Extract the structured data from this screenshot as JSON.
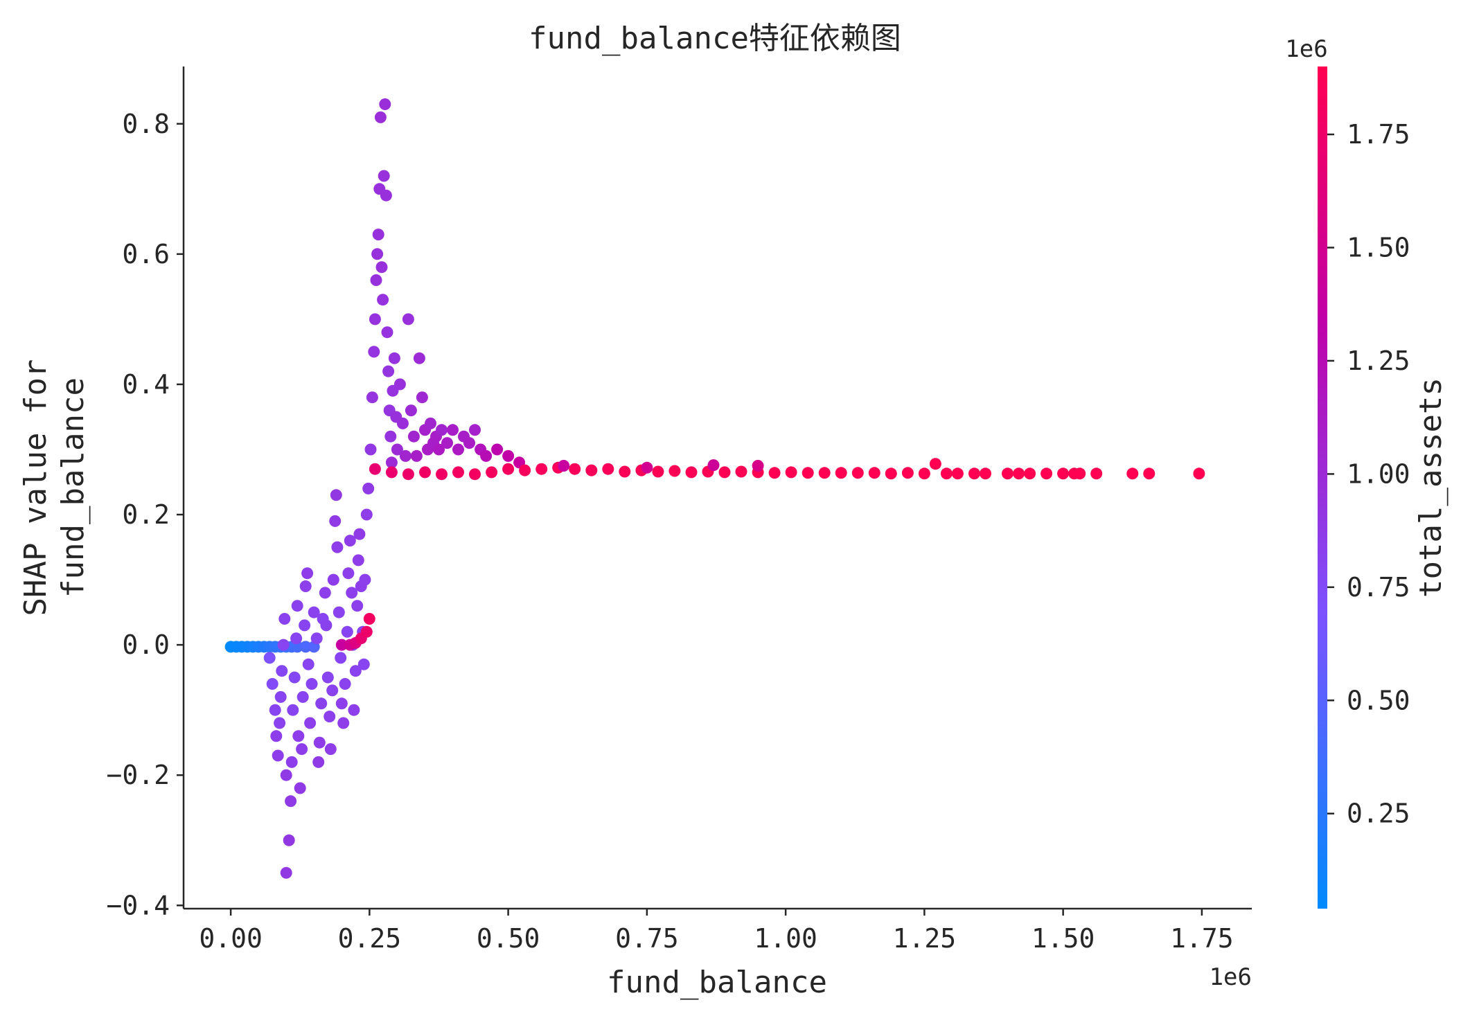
{
  "chart_data": {
    "type": "scatter",
    "title": "fund_balance特征依赖图",
    "xlabel": "fund_balance",
    "ylabel_lines": [
      "SHAP value for",
      "fund_balance"
    ],
    "x_offset_label": "1e6",
    "xlim": [
      -0.085,
      1.84
    ],
    "ylim": [
      -0.405,
      0.888
    ],
    "x_ticks": [
      0.0,
      0.25,
      0.5,
      0.75,
      1.0,
      1.25,
      1.5,
      1.75
    ],
    "x_tick_labels": [
      "0.00",
      "0.25",
      "0.50",
      "0.75",
      "1.00",
      "1.25",
      "1.50",
      "1.75"
    ],
    "y_ticks": [
      -0.4,
      -0.2,
      0.0,
      0.2,
      0.4,
      0.6,
      0.8
    ],
    "y_tick_labels": [
      "−0.4",
      "−0.2",
      "0.0",
      "0.2",
      "0.4",
      "0.6",
      "0.8"
    ],
    "grid": false,
    "colorbar": {
      "label": "total_assets",
      "offset_label": "1e6",
      "range": [
        0.04,
        1.9
      ],
      "ticks": [
        0.25,
        0.5,
        0.75,
        1.0,
        1.25,
        1.5,
        1.75
      ],
      "tick_labels": [
        "0.25",
        "0.50",
        "0.75",
        "1.00",
        "1.25",
        "1.50",
        "1.75"
      ],
      "colormap": [
        "#008afb",
        "#7c52ff",
        "#c000a8",
        "#ff0052"
      ]
    },
    "points_color_value_axis": "total_assets",
    "points": [
      [
        0.0,
        -0.003,
        0.05
      ],
      [
        0.01,
        -0.003,
        0.08
      ],
      [
        0.02,
        -0.003,
        0.1
      ],
      [
        0.03,
        -0.003,
        0.12
      ],
      [
        0.04,
        -0.003,
        0.15
      ],
      [
        0.05,
        -0.003,
        0.18
      ],
      [
        0.06,
        -0.003,
        0.21
      ],
      [
        0.07,
        -0.003,
        0.25
      ],
      [
        0.08,
        -0.003,
        0.28
      ],
      [
        0.09,
        -0.003,
        0.31
      ],
      [
        0.1,
        -0.003,
        0.34
      ],
      [
        0.11,
        -0.003,
        0.37
      ],
      [
        0.12,
        -0.003,
        0.4
      ],
      [
        0.135,
        -0.003,
        0.44
      ],
      [
        0.15,
        -0.003,
        0.47
      ],
      [
        0.07,
        -0.02,
        0.7
      ],
      [
        0.075,
        -0.06,
        0.75
      ],
      [
        0.08,
        -0.1,
        0.8
      ],
      [
        0.082,
        -0.14,
        0.85
      ],
      [
        0.085,
        -0.17,
        0.85
      ],
      [
        0.088,
        -0.12,
        0.82
      ],
      [
        0.09,
        -0.08,
        0.8
      ],
      [
        0.092,
        -0.04,
        0.78
      ],
      [
        0.095,
        0.0,
        0.8
      ],
      [
        0.097,
        0.04,
        0.82
      ],
      [
        0.1,
        -0.2,
        0.88
      ],
      [
        0.1,
        -0.35,
        0.9
      ],
      [
        0.105,
        -0.3,
        0.9
      ],
      [
        0.108,
        -0.24,
        0.88
      ],
      [
        0.11,
        -0.18,
        0.85
      ],
      [
        0.112,
        -0.1,
        0.8
      ],
      [
        0.115,
        -0.05,
        0.78
      ],
      [
        0.118,
        0.01,
        0.8
      ],
      [
        0.12,
        0.06,
        0.82
      ],
      [
        0.122,
        -0.14,
        0.85
      ],
      [
        0.125,
        -0.22,
        0.88
      ],
      [
        0.128,
        -0.16,
        0.85
      ],
      [
        0.13,
        -0.08,
        0.8
      ],
      [
        0.133,
        0.03,
        0.8
      ],
      [
        0.135,
        0.09,
        0.84
      ],
      [
        0.138,
        0.11,
        0.86
      ],
      [
        0.14,
        -0.03,
        0.8
      ],
      [
        0.143,
        -0.12,
        0.84
      ],
      [
        0.146,
        -0.06,
        0.8
      ],
      [
        0.15,
        0.05,
        0.82
      ],
      [
        0.155,
        0.01,
        0.8
      ],
      [
        0.158,
        -0.18,
        0.88
      ],
      [
        0.16,
        -0.15,
        0.86
      ],
      [
        0.163,
        -0.09,
        0.82
      ],
      [
        0.166,
        0.04,
        0.8
      ],
      [
        0.17,
        0.08,
        0.84
      ],
      [
        0.172,
        0.03,
        0.82
      ],
      [
        0.175,
        -0.05,
        0.8
      ],
      [
        0.178,
        -0.11,
        0.84
      ],
      [
        0.18,
        -0.16,
        0.86
      ],
      [
        0.183,
        -0.07,
        0.82
      ],
      [
        0.185,
        0.1,
        0.85
      ],
      [
        0.188,
        0.19,
        0.88
      ],
      [
        0.19,
        0.23,
        0.9
      ],
      [
        0.192,
        0.15,
        0.86
      ],
      [
        0.195,
        0.05,
        0.82
      ],
      [
        0.198,
        -0.02,
        0.8
      ],
      [
        0.2,
        -0.09,
        0.84
      ],
      [
        0.203,
        -0.12,
        0.86
      ],
      [
        0.206,
        -0.06,
        0.82
      ],
      [
        0.21,
        0.02,
        0.8
      ],
      [
        0.212,
        0.11,
        0.84
      ],
      [
        0.215,
        0.16,
        0.86
      ],
      [
        0.218,
        0.08,
        0.84
      ],
      [
        0.22,
        0.0,
        0.8
      ],
      [
        0.222,
        -0.1,
        0.84
      ],
      [
        0.225,
        -0.04,
        0.82
      ],
      [
        0.228,
        0.06,
        0.84
      ],
      [
        0.23,
        0.13,
        0.86
      ],
      [
        0.232,
        0.17,
        0.88
      ],
      [
        0.235,
        0.09,
        0.85
      ],
      [
        0.238,
        0.02,
        0.82
      ],
      [
        0.24,
        -0.03,
        0.8
      ],
      [
        0.242,
        0.1,
        0.84
      ],
      [
        0.245,
        0.2,
        0.86
      ],
      [
        0.248,
        0.24,
        0.88
      ],
      [
        0.2,
        0.0,
        1.4
      ],
      [
        0.215,
        0.0,
        1.5
      ],
      [
        0.225,
        0.003,
        1.6
      ],
      [
        0.235,
        0.01,
        1.7
      ],
      [
        0.245,
        0.02,
        1.75
      ],
      [
        0.25,
        0.04,
        1.8
      ],
      [
        0.252,
        0.3,
        0.9
      ],
      [
        0.255,
        0.38,
        0.92
      ],
      [
        0.258,
        0.45,
        0.92
      ],
      [
        0.26,
        0.5,
        0.94
      ],
      [
        0.262,
        0.56,
        0.95
      ],
      [
        0.264,
        0.6,
        0.95
      ],
      [
        0.266,
        0.63,
        0.95
      ],
      [
        0.268,
        0.7,
        0.96
      ],
      [
        0.27,
        0.81,
        0.98
      ],
      [
        0.272,
        0.58,
        0.95
      ],
      [
        0.274,
        0.53,
        0.94
      ],
      [
        0.276,
        0.72,
        0.96
      ],
      [
        0.278,
        0.83,
        0.98
      ],
      [
        0.28,
        0.69,
        0.96
      ],
      [
        0.282,
        0.48,
        0.94
      ],
      [
        0.284,
        0.42,
        0.92
      ],
      [
        0.286,
        0.36,
        0.92
      ],
      [
        0.288,
        0.32,
        0.93
      ],
      [
        0.29,
        0.28,
        1.0
      ],
      [
        0.292,
        0.39,
        0.94
      ],
      [
        0.295,
        0.44,
        0.94
      ],
      [
        0.298,
        0.35,
        0.95
      ],
      [
        0.3,
        0.3,
        1.0
      ],
      [
        0.305,
        0.4,
        0.96
      ],
      [
        0.31,
        0.34,
        0.98
      ],
      [
        0.315,
        0.29,
        1.05
      ],
      [
        0.32,
        0.5,
        0.96
      ],
      [
        0.325,
        0.36,
        1.0
      ],
      [
        0.33,
        0.32,
        1.05
      ],
      [
        0.335,
        0.29,
        1.1
      ],
      [
        0.34,
        0.44,
        1.0
      ],
      [
        0.345,
        0.38,
        1.02
      ],
      [
        0.35,
        0.33,
        1.08
      ],
      [
        0.355,
        0.3,
        1.12
      ],
      [
        0.36,
        0.34,
        1.05
      ],
      [
        0.365,
        0.31,
        1.1
      ],
      [
        0.37,
        0.32,
        1.1
      ],
      [
        0.375,
        0.3,
        1.15
      ],
      [
        0.38,
        0.33,
        1.05
      ],
      [
        0.39,
        0.31,
        1.12
      ],
      [
        0.4,
        0.33,
        1.1
      ],
      [
        0.41,
        0.3,
        1.15
      ],
      [
        0.42,
        0.32,
        1.1
      ],
      [
        0.43,
        0.31,
        1.12
      ],
      [
        0.44,
        0.33,
        1.08
      ],
      [
        0.45,
        0.3,
        1.2
      ],
      [
        0.46,
        0.29,
        1.25
      ],
      [
        0.48,
        0.3,
        1.3
      ],
      [
        0.5,
        0.29,
        1.35
      ],
      [
        0.52,
        0.28,
        1.4
      ],
      [
        0.26,
        0.27,
        1.7
      ],
      [
        0.29,
        0.265,
        1.72
      ],
      [
        0.32,
        0.262,
        1.75
      ],
      [
        0.35,
        0.265,
        1.78
      ],
      [
        0.38,
        0.262,
        1.78
      ],
      [
        0.41,
        0.265,
        1.8
      ],
      [
        0.44,
        0.262,
        1.8
      ],
      [
        0.47,
        0.265,
        1.82
      ],
      [
        0.5,
        0.27,
        1.82
      ],
      [
        0.53,
        0.268,
        1.84
      ],
      [
        0.56,
        0.27,
        1.84
      ],
      [
        0.59,
        0.272,
        1.85
      ],
      [
        0.62,
        0.27,
        1.85
      ],
      [
        0.65,
        0.268,
        1.86
      ],
      [
        0.68,
        0.27,
        1.86
      ],
      [
        0.71,
        0.266,
        1.87
      ],
      [
        0.74,
        0.268,
        1.87
      ],
      [
        0.77,
        0.266,
        1.88
      ],
      [
        0.8,
        0.267,
        1.88
      ],
      [
        0.83,
        0.265,
        1.88
      ],
      [
        0.86,
        0.266,
        1.89
      ],
      [
        0.89,
        0.265,
        1.89
      ],
      [
        0.92,
        0.266,
        1.89
      ],
      [
        0.95,
        0.265,
        1.9
      ],
      [
        0.98,
        0.264,
        1.9
      ],
      [
        1.01,
        0.265,
        1.9
      ],
      [
        1.04,
        0.264,
        1.9
      ],
      [
        1.07,
        0.264,
        1.9
      ],
      [
        1.1,
        0.264,
        1.9
      ],
      [
        1.13,
        0.264,
        1.9
      ],
      [
        1.16,
        0.264,
        1.9
      ],
      [
        1.19,
        0.263,
        1.9
      ],
      [
        1.22,
        0.264,
        1.9
      ],
      [
        1.25,
        0.263,
        1.9
      ],
      [
        1.27,
        0.278,
        1.9
      ],
      [
        1.29,
        0.263,
        1.9
      ],
      [
        1.31,
        0.263,
        1.9
      ],
      [
        1.34,
        0.263,
        1.9
      ],
      [
        1.36,
        0.263,
        1.9
      ],
      [
        1.4,
        0.263,
        1.9
      ],
      [
        1.42,
        0.263,
        1.9
      ],
      [
        1.44,
        0.263,
        1.9
      ],
      [
        1.47,
        0.263,
        1.9
      ],
      [
        1.5,
        0.263,
        1.9
      ],
      [
        1.52,
        0.263,
        1.9
      ],
      [
        1.53,
        0.263,
        1.9
      ],
      [
        1.56,
        0.263,
        1.9
      ],
      [
        1.625,
        0.263,
        1.9
      ],
      [
        1.655,
        0.263,
        1.9
      ],
      [
        1.745,
        0.263,
        1.9
      ],
      [
        0.6,
        0.275,
        1.4
      ],
      [
        0.75,
        0.272,
        1.5
      ],
      [
        0.87,
        0.276,
        1.45
      ],
      [
        0.95,
        0.275,
        1.55
      ]
    ]
  }
}
